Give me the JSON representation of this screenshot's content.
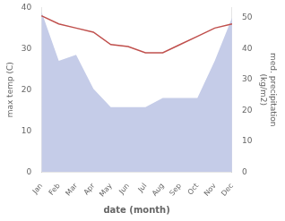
{
  "chart_data": {
    "type": "line",
    "categories": [
      "Jan",
      "Feb",
      "Mar",
      "Apr",
      "May",
      "Jun",
      "Jul",
      "Aug",
      "Sep",
      "Oct",
      "Nov",
      "Dec"
    ],
    "series": [
      {
        "type": "line",
        "color": "#c0504d",
        "values": [
          38,
          36,
          35,
          34,
          31,
          30.5,
          29,
          29,
          31,
          33,
          35,
          36
        ]
      },
      {
        "type": "area",
        "color": "#c5cce8",
        "axis": "y2",
        "values": [
          52,
          36,
          38,
          27,
          21,
          21,
          21,
          24,
          24,
          24,
          36,
          50
        ]
      }
    ],
    "xlabel": "date (month)",
    "ylabel": "max temp (C)",
    "y2label": "med. precipitation\n(kg/m2)",
    "ylim": [
      0,
      40
    ],
    "yticks": [
      0,
      10,
      20,
      30,
      40
    ],
    "y2lim": [
      0,
      53.33
    ],
    "y2ticks": [
      0,
      10,
      20,
      30,
      40,
      50
    ],
    "grid": false
  }
}
